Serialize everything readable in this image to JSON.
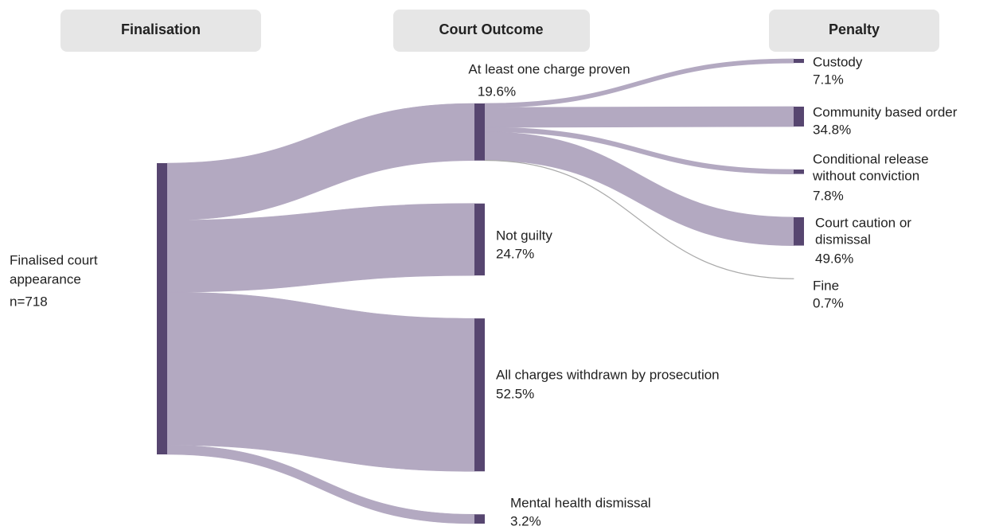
{
  "chart_data": {
    "type": "sankey",
    "columns": [
      "Finalisation",
      "Court Outcome",
      "Penalty"
    ],
    "node_color": "#574670",
    "link_color": "#b3a9c1",
    "source": {
      "name": [
        "Finalised court",
        "appearance"
      ],
      "total_label": "n=718"
    },
    "outcomes": {
      "names": [
        [
          "At least one charge proven"
        ],
        [
          "Not guilty"
        ],
        [
          "All charges withdrawn by prosecution"
        ],
        [
          "Mental health dismissal"
        ]
      ],
      "values": [
        19.6,
        24.7,
        52.5,
        3.2
      ],
      "value_labels": [
        "19.6%",
        "24.7%",
        "52.5%",
        "3.2%"
      ]
    },
    "penalties": {
      "names": [
        [
          "Custody"
        ],
        [
          "Community based order"
        ],
        [
          "Conditional release",
          "without conviction"
        ],
        [
          "Court caution or",
          "dismissal"
        ],
        [
          "Fine"
        ]
      ],
      "values": [
        7.1,
        34.8,
        7.8,
        49.6,
        0.7
      ],
      "value_labels": [
        "7.1%",
        "34.8%",
        "7.8%",
        "49.6%",
        "0.7%"
      ]
    }
  }
}
